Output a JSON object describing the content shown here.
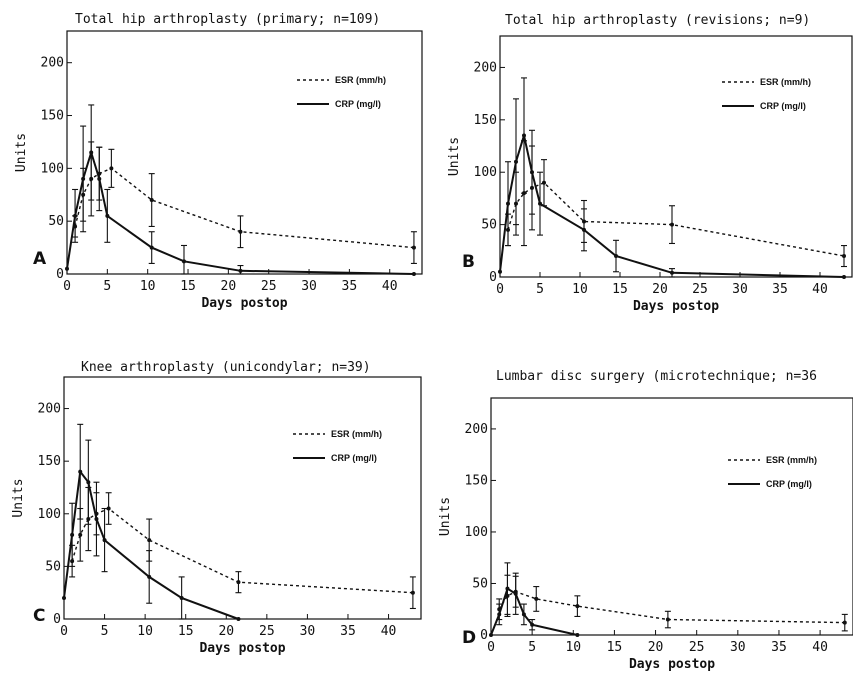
{
  "chart_data": [
    {
      "type": "line",
      "panel": "A",
      "title": "Total hip arthroplasty (primary; n=109)",
      "xlabel": "Days postop",
      "ylabel": "Units",
      "xlim": [
        0,
        44
      ],
      "ylim": [
        0,
        230
      ],
      "xticks": [
        0,
        5,
        10,
        15,
        20,
        25,
        30,
        35,
        40
      ],
      "yticks": [
        0,
        50,
        100,
        150,
        200
      ],
      "legend_position": "top-right",
      "series": [
        {
          "name": "ESR (mm/h)",
          "style": "dashed",
          "x": [
            1,
            2,
            3,
            4,
            5.5,
            10.5,
            21.5,
            43
          ],
          "y": [
            45,
            75,
            90,
            95,
            100,
            70,
            40,
            25
          ],
          "err": [
            10,
            25,
            35,
            25,
            18,
            25,
            15,
            15
          ]
        },
        {
          "name": "CRP (mg/l)",
          "style": "solid",
          "x": [
            0,
            1,
            2,
            3,
            4,
            5,
            10.5,
            14.5,
            21.5,
            43
          ],
          "y": [
            5,
            55,
            90,
            115,
            90,
            55,
            25,
            12,
            3,
            0
          ],
          "err": [
            0,
            25,
            50,
            45,
            30,
            25,
            15,
            15,
            5,
            0
          ]
        }
      ]
    },
    {
      "type": "line",
      "panel": "B",
      "title": "Total hip arthroplasty (revisions; n=9)",
      "xlabel": "Days postop",
      "ylabel": "Units",
      "xlim": [
        0,
        44
      ],
      "ylim": [
        0,
        230
      ],
      "xticks": [
        0,
        5,
        10,
        15,
        20,
        25,
        30,
        35,
        40
      ],
      "yticks": [
        0,
        50,
        100,
        150,
        200
      ],
      "legend_position": "top-right",
      "series": [
        {
          "name": "ESR (mm/h)",
          "style": "dashed",
          "x": [
            1,
            2,
            3,
            4,
            5.5,
            10.5,
            21.5,
            43
          ],
          "y": [
            45,
            70,
            80,
            85,
            90,
            53,
            50,
            20
          ],
          "err": [
            15,
            30,
            50,
            40,
            22,
            20,
            18,
            10
          ]
        },
        {
          "name": "CRP (mg/l)",
          "style": "solid",
          "x": [
            0,
            1,
            2,
            3,
            4,
            5,
            10.5,
            14.5,
            21.5,
            43
          ],
          "y": [
            5,
            70,
            110,
            135,
            100,
            70,
            45,
            20,
            4,
            0
          ],
          "err": [
            0,
            40,
            60,
            55,
            40,
            30,
            20,
            15,
            4,
            0
          ]
        }
      ]
    },
    {
      "type": "line",
      "panel": "C",
      "title": "Knee arthroplasty (unicondylar; n=39)",
      "xlabel": "Days postop",
      "ylabel": "Units",
      "xlim": [
        0,
        44
      ],
      "ylim": [
        0,
        230
      ],
      "xticks": [
        0,
        5,
        10,
        15,
        20,
        25,
        30,
        35,
        40
      ],
      "yticks": [
        0,
        50,
        100,
        150,
        200
      ],
      "legend_position": "top-right",
      "series": [
        {
          "name": "ESR (mm/h)",
          "style": "dashed",
          "x": [
            1,
            2,
            3,
            4,
            5.5,
            10.5,
            21.5,
            43
          ],
          "y": [
            55,
            80,
            95,
            100,
            105,
            75,
            35,
            25
          ],
          "err": [
            15,
            25,
            30,
            20,
            15,
            20,
            10,
            15
          ]
        },
        {
          "name": "CRP (mg/l)",
          "style": "solid",
          "x": [
            0,
            1,
            2,
            3,
            4,
            5,
            10.5,
            14.5,
            21.5
          ],
          "y": [
            20,
            80,
            140,
            130,
            95,
            75,
            40,
            20,
            0
          ],
          "err": [
            0,
            30,
            45,
            40,
            35,
            30,
            25,
            20,
            0
          ]
        }
      ]
    },
    {
      "type": "line",
      "panel": "D",
      "title": "Lumbar disc surgery (microtechnique; n=36",
      "xlabel": "Days postop",
      "ylabel": "Units",
      "xlim": [
        0,
        44
      ],
      "ylim": [
        0,
        230
      ],
      "xticks": [
        0,
        5,
        10,
        15,
        20,
        25,
        30,
        35,
        40
      ],
      "yticks": [
        0,
        50,
        100,
        150,
        200
      ],
      "legend_position": "top-right",
      "series": [
        {
          "name": "ESR (mm/h)",
          "style": "dashed",
          "x": [
            1,
            2,
            3,
            5.5,
            10.5,
            21.5,
            43
          ],
          "y": [
            25,
            38,
            42,
            35,
            28,
            15,
            12
          ],
          "err": [
            10,
            20,
            15,
            12,
            10,
            8,
            8
          ]
        },
        {
          "name": "CRP (mg/l)",
          "style": "solid",
          "x": [
            0,
            1,
            2,
            3,
            4,
            5,
            10.5
          ],
          "y": [
            0,
            20,
            45,
            40,
            20,
            10,
            0
          ],
          "err": [
            0,
            10,
            25,
            20,
            10,
            5,
            0
          ]
        }
      ]
    }
  ]
}
